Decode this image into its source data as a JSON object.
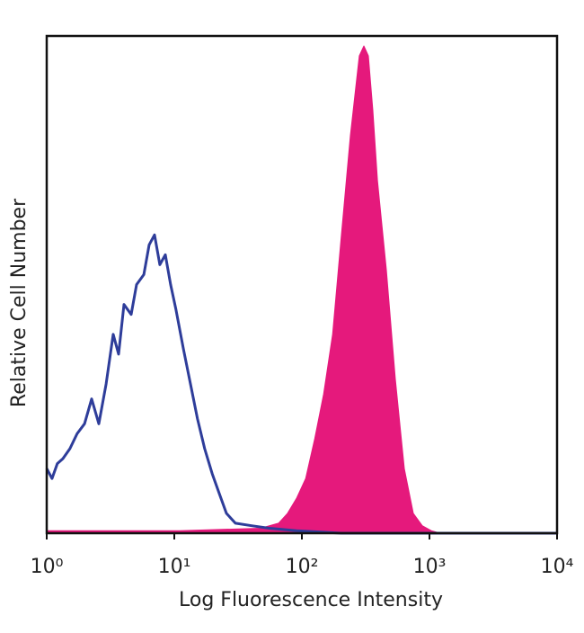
{
  "chart_data": {
    "type": "histogram-overlay",
    "x_label": "Log Fluorescence Intensity",
    "y_label": "Relative Cell Number",
    "xscale": "log",
    "xlim": [
      1,
      10000
    ],
    "ylim": [
      0,
      100
    ],
    "xticks": [
      {
        "value": 1,
        "label": "10⁰"
      },
      {
        "value": 10,
        "label": "10¹"
      },
      {
        "value": 100,
        "label": "10²"
      },
      {
        "value": 1000,
        "label": "10³"
      },
      {
        "value": 10000,
        "label": "10⁴"
      }
    ],
    "series": [
      {
        "color": "#e5197c",
        "filled": true,
        "x": [
          1,
          11.0,
          47.4,
          65.6,
          77.1,
          90.7,
          107,
          126,
          148,
          174,
          204,
          240,
          282,
          306,
          332,
          360,
          391,
          459,
          540,
          635,
          747,
          879,
          1033,
          1215,
          10000
        ],
        "values": [
          0.5,
          0.5,
          1,
          2,
          4,
          7,
          11,
          19,
          28,
          40,
          60,
          80,
          96,
          98,
          96,
          85,
          71,
          53,
          31,
          13,
          4,
          1.5,
          0.5,
          0,
          0
        ]
      },
      {
        "color": "#2e3d9a",
        "filled": false,
        "x": [
          1,
          1.1,
          1.21,
          1.34,
          1.52,
          1.73,
          1.98,
          2.25,
          2.56,
          2.92,
          3.32,
          3.66,
          4.03,
          4.59,
          5.06,
          5.77,
          6.35,
          7.0,
          7.7,
          8.5,
          9.36,
          10.3,
          11.8,
          13.4,
          15.2,
          17.3,
          19.8,
          22.5,
          25.6,
          30.1,
          40.4,
          55.6,
          90.9,
          203,
          1436,
          10000
        ],
        "values": [
          13,
          11,
          14,
          15,
          17,
          20,
          22,
          27,
          22,
          30,
          40,
          36,
          46,
          44,
          50,
          52,
          58,
          60,
          54,
          56,
          50,
          45,
          37,
          30,
          23,
          17,
          12,
          8,
          4,
          2,
          1.5,
          1,
          0.5,
          0,
          0,
          0
        ]
      }
    ]
  }
}
